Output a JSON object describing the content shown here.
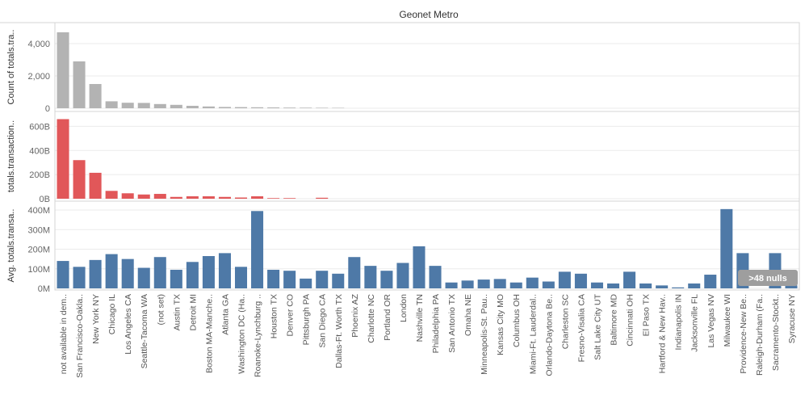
{
  "chart_data": {
    "type": "bar",
    "title": "Geonet Metro",
    "categories": [
      "not available in dem..",
      "San Francisco-Oakla..",
      "New York NY",
      "Chicago IL",
      "Los Angeles CA",
      "Seattle-Tacoma WA",
      "(not set)",
      "Austin TX",
      "Detroit MI",
      "Boston MA-Manche..",
      "Atlanta GA",
      "Washington DC (Ha..",
      "Roanoke-Lynchburg ..",
      "Houston TX",
      "Denver CO",
      "Pittsburgh PA",
      "San Diego CA",
      "Dallas-Ft. Worth TX",
      "Phoenix AZ",
      "Charlotte NC",
      "Portland OR",
      "London",
      "Nashville TN",
      "Philadelphia PA",
      "San Antonio TX",
      "Omaha NE",
      "Minneapolis-St. Pau..",
      "Kansas City MO",
      "Columbus OH",
      "Miami-Ft. Lauderdal..",
      "Orlando-Daytona Be..",
      "Charleston SC",
      "Fresno-Visalia CA",
      "Salt Lake City UT",
      "Baltimore MD",
      "Cincinnati OH",
      "El Paso TX",
      "Hartford & New Hav..",
      "Indianapolis IN",
      "Jacksonville FL",
      "Las Vegas NV",
      "Milwaukee WI",
      "Providence-New Be..",
      "Raleigh-Durham (Fa..",
      "Sacramento-Stockt..",
      "Syracuse NY"
    ],
    "panels": [
      {
        "ylabel": "Count of totals.tra..",
        "ylim": [
          0,
          5200
        ],
        "ticks": [
          0,
          2000,
          4000
        ],
        "tick_labels": [
          "0",
          "2,000",
          "4,000"
        ],
        "color": "#b3b3b3",
        "values": [
          4700,
          2900,
          1500,
          430,
          340,
          330,
          260,
          210,
          150,
          110,
          80,
          70,
          60,
          50,
          40,
          35,
          30,
          25,
          0,
          0,
          0,
          0,
          0,
          0,
          0,
          0,
          0,
          0,
          0,
          0,
          0,
          0,
          0,
          0,
          0,
          0,
          0,
          0,
          0,
          0,
          0,
          0,
          0,
          0,
          0,
          0
        ]
      },
      {
        "ylabel": "totals.transaction..",
        "ylim": [
          0,
          690
        ],
        "ticks": [
          0,
          200,
          400,
          600
        ],
        "tick_labels": [
          "0B",
          "200B",
          "400B",
          "600B"
        ],
        "color": "#e15759",
        "values": [
          660,
          320,
          215,
          65,
          45,
          35,
          40,
          15,
          20,
          20,
          15,
          10,
          20,
          5,
          5,
          0,
          8,
          0,
          0,
          0,
          0,
          0,
          0,
          0,
          0,
          0,
          0,
          0,
          0,
          0,
          0,
          0,
          0,
          0,
          0,
          0,
          0,
          0,
          0,
          0,
          0,
          0,
          0,
          0,
          0,
          0
        ]
      },
      {
        "ylabel": "Avg. totals.transa..",
        "ylim": [
          0,
          425
        ],
        "ticks": [
          0,
          100,
          200,
          300,
          400
        ],
        "tick_labels": [
          "0M",
          "100M",
          "200M",
          "300M",
          "400M"
        ],
        "color": "#4e79a7",
        "values": [
          140,
          110,
          145,
          175,
          150,
          105,
          160,
          95,
          135,
          165,
          180,
          110,
          395,
          95,
          90,
          50,
          90,
          75,
          160,
          115,
          90,
          130,
          215,
          115,
          30,
          40,
          45,
          48,
          30,
          55,
          35,
          85,
          75,
          30,
          25,
          85,
          25,
          15,
          5,
          25,
          70,
          405,
          180,
          0,
          180,
          15
        ]
      }
    ],
    "annotation": ">48 nulls"
  }
}
